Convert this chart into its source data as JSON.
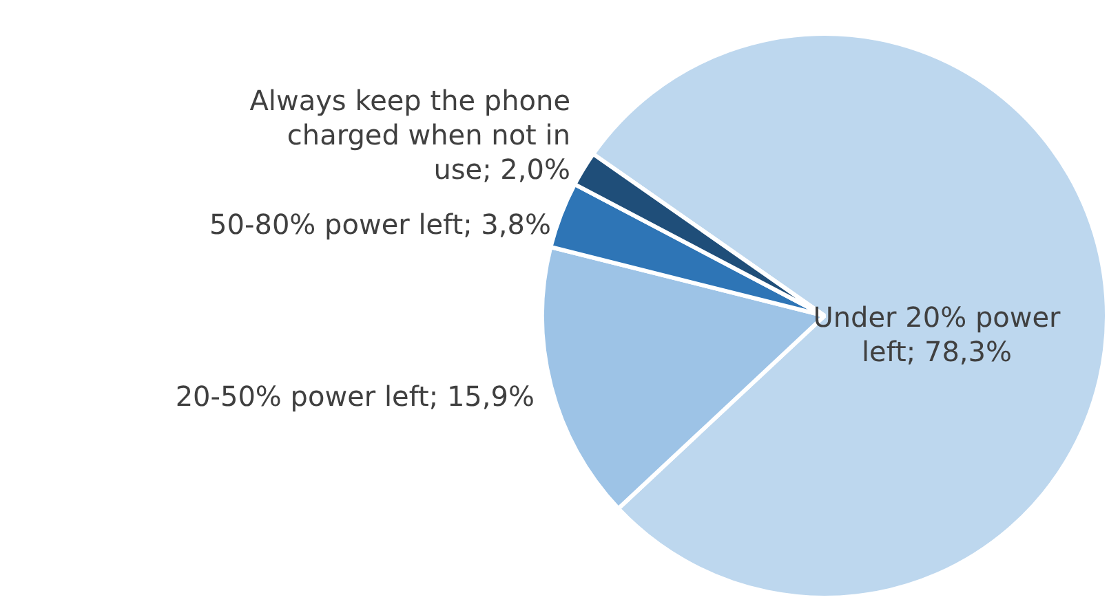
{
  "chart_data": {
    "type": "pie",
    "categories": [
      "Under 20% power left",
      "20-50% power left",
      "50-80% power left",
      "Always keep the phone charged when not in use"
    ],
    "values": [
      78.3,
      15.9,
      3.8,
      2.0
    ],
    "colors": [
      "#bdd7ee",
      "#9dc3e6",
      "#2e75b6",
      "#1f4e79"
    ],
    "value_labels": [
      "78,3%",
      "15,9%",
      "3,8%",
      "2,0%"
    ],
    "legend": false
  }
}
